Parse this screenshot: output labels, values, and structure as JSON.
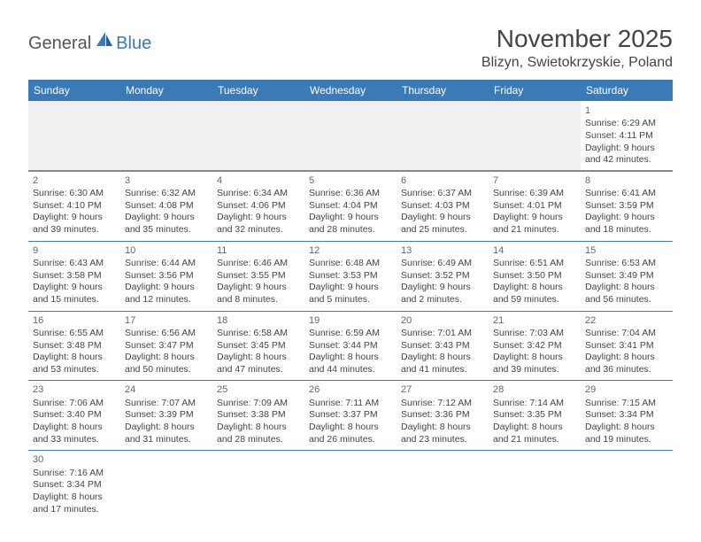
{
  "logo": {
    "text1": "General",
    "text2": "Blue"
  },
  "title": "November 2025",
  "location": "Blizyn, Swietokrzyskie, Poland",
  "colors": {
    "header_bg": "#3b79b7",
    "header_fg": "#ffffff",
    "rule": "#3b79b7",
    "blank_bg": "#f0f0f0",
    "text": "#444444"
  },
  "weekdays": [
    "Sunday",
    "Monday",
    "Tuesday",
    "Wednesday",
    "Thursday",
    "Friday",
    "Saturday"
  ],
  "weeks": [
    [
      null,
      null,
      null,
      null,
      null,
      null,
      {
        "n": "1",
        "sr": "Sunrise: 6:29 AM",
        "ss": "Sunset: 4:11 PM",
        "d1": "Daylight: 9 hours",
        "d2": "and 42 minutes."
      }
    ],
    [
      {
        "n": "2",
        "sr": "Sunrise: 6:30 AM",
        "ss": "Sunset: 4:10 PM",
        "d1": "Daylight: 9 hours",
        "d2": "and 39 minutes."
      },
      {
        "n": "3",
        "sr": "Sunrise: 6:32 AM",
        "ss": "Sunset: 4:08 PM",
        "d1": "Daylight: 9 hours",
        "d2": "and 35 minutes."
      },
      {
        "n": "4",
        "sr": "Sunrise: 6:34 AM",
        "ss": "Sunset: 4:06 PM",
        "d1": "Daylight: 9 hours",
        "d2": "and 32 minutes."
      },
      {
        "n": "5",
        "sr": "Sunrise: 6:36 AM",
        "ss": "Sunset: 4:04 PM",
        "d1": "Daylight: 9 hours",
        "d2": "and 28 minutes."
      },
      {
        "n": "6",
        "sr": "Sunrise: 6:37 AM",
        "ss": "Sunset: 4:03 PM",
        "d1": "Daylight: 9 hours",
        "d2": "and 25 minutes."
      },
      {
        "n": "7",
        "sr": "Sunrise: 6:39 AM",
        "ss": "Sunset: 4:01 PM",
        "d1": "Daylight: 9 hours",
        "d2": "and 21 minutes."
      },
      {
        "n": "8",
        "sr": "Sunrise: 6:41 AM",
        "ss": "Sunset: 3:59 PM",
        "d1": "Daylight: 9 hours",
        "d2": "and 18 minutes."
      }
    ],
    [
      {
        "n": "9",
        "sr": "Sunrise: 6:43 AM",
        "ss": "Sunset: 3:58 PM",
        "d1": "Daylight: 9 hours",
        "d2": "and 15 minutes."
      },
      {
        "n": "10",
        "sr": "Sunrise: 6:44 AM",
        "ss": "Sunset: 3:56 PM",
        "d1": "Daylight: 9 hours",
        "d2": "and 12 minutes."
      },
      {
        "n": "11",
        "sr": "Sunrise: 6:46 AM",
        "ss": "Sunset: 3:55 PM",
        "d1": "Daylight: 9 hours",
        "d2": "and 8 minutes."
      },
      {
        "n": "12",
        "sr": "Sunrise: 6:48 AM",
        "ss": "Sunset: 3:53 PM",
        "d1": "Daylight: 9 hours",
        "d2": "and 5 minutes."
      },
      {
        "n": "13",
        "sr": "Sunrise: 6:49 AM",
        "ss": "Sunset: 3:52 PM",
        "d1": "Daylight: 9 hours",
        "d2": "and 2 minutes."
      },
      {
        "n": "14",
        "sr": "Sunrise: 6:51 AM",
        "ss": "Sunset: 3:50 PM",
        "d1": "Daylight: 8 hours",
        "d2": "and 59 minutes."
      },
      {
        "n": "15",
        "sr": "Sunrise: 6:53 AM",
        "ss": "Sunset: 3:49 PM",
        "d1": "Daylight: 8 hours",
        "d2": "and 56 minutes."
      }
    ],
    [
      {
        "n": "16",
        "sr": "Sunrise: 6:55 AM",
        "ss": "Sunset: 3:48 PM",
        "d1": "Daylight: 8 hours",
        "d2": "and 53 minutes."
      },
      {
        "n": "17",
        "sr": "Sunrise: 6:56 AM",
        "ss": "Sunset: 3:47 PM",
        "d1": "Daylight: 8 hours",
        "d2": "and 50 minutes."
      },
      {
        "n": "18",
        "sr": "Sunrise: 6:58 AM",
        "ss": "Sunset: 3:45 PM",
        "d1": "Daylight: 8 hours",
        "d2": "and 47 minutes."
      },
      {
        "n": "19",
        "sr": "Sunrise: 6:59 AM",
        "ss": "Sunset: 3:44 PM",
        "d1": "Daylight: 8 hours",
        "d2": "and 44 minutes."
      },
      {
        "n": "20",
        "sr": "Sunrise: 7:01 AM",
        "ss": "Sunset: 3:43 PM",
        "d1": "Daylight: 8 hours",
        "d2": "and 41 minutes."
      },
      {
        "n": "21",
        "sr": "Sunrise: 7:03 AM",
        "ss": "Sunset: 3:42 PM",
        "d1": "Daylight: 8 hours",
        "d2": "and 39 minutes."
      },
      {
        "n": "22",
        "sr": "Sunrise: 7:04 AM",
        "ss": "Sunset: 3:41 PM",
        "d1": "Daylight: 8 hours",
        "d2": "and 36 minutes."
      }
    ],
    [
      {
        "n": "23",
        "sr": "Sunrise: 7:06 AM",
        "ss": "Sunset: 3:40 PM",
        "d1": "Daylight: 8 hours",
        "d2": "and 33 minutes."
      },
      {
        "n": "24",
        "sr": "Sunrise: 7:07 AM",
        "ss": "Sunset: 3:39 PM",
        "d1": "Daylight: 8 hours",
        "d2": "and 31 minutes."
      },
      {
        "n": "25",
        "sr": "Sunrise: 7:09 AM",
        "ss": "Sunset: 3:38 PM",
        "d1": "Daylight: 8 hours",
        "d2": "and 28 minutes."
      },
      {
        "n": "26",
        "sr": "Sunrise: 7:11 AM",
        "ss": "Sunset: 3:37 PM",
        "d1": "Daylight: 8 hours",
        "d2": "and 26 minutes."
      },
      {
        "n": "27",
        "sr": "Sunrise: 7:12 AM",
        "ss": "Sunset: 3:36 PM",
        "d1": "Daylight: 8 hours",
        "d2": "and 23 minutes."
      },
      {
        "n": "28",
        "sr": "Sunrise: 7:14 AM",
        "ss": "Sunset: 3:35 PM",
        "d1": "Daylight: 8 hours",
        "d2": "and 21 minutes."
      },
      {
        "n": "29",
        "sr": "Sunrise: 7:15 AM",
        "ss": "Sunset: 3:34 PM",
        "d1": "Daylight: 8 hours",
        "d2": "and 19 minutes."
      }
    ],
    [
      {
        "n": "30",
        "sr": "Sunrise: 7:16 AM",
        "ss": "Sunset: 3:34 PM",
        "d1": "Daylight: 8 hours",
        "d2": "and 17 minutes."
      },
      null,
      null,
      null,
      null,
      null,
      null
    ]
  ]
}
